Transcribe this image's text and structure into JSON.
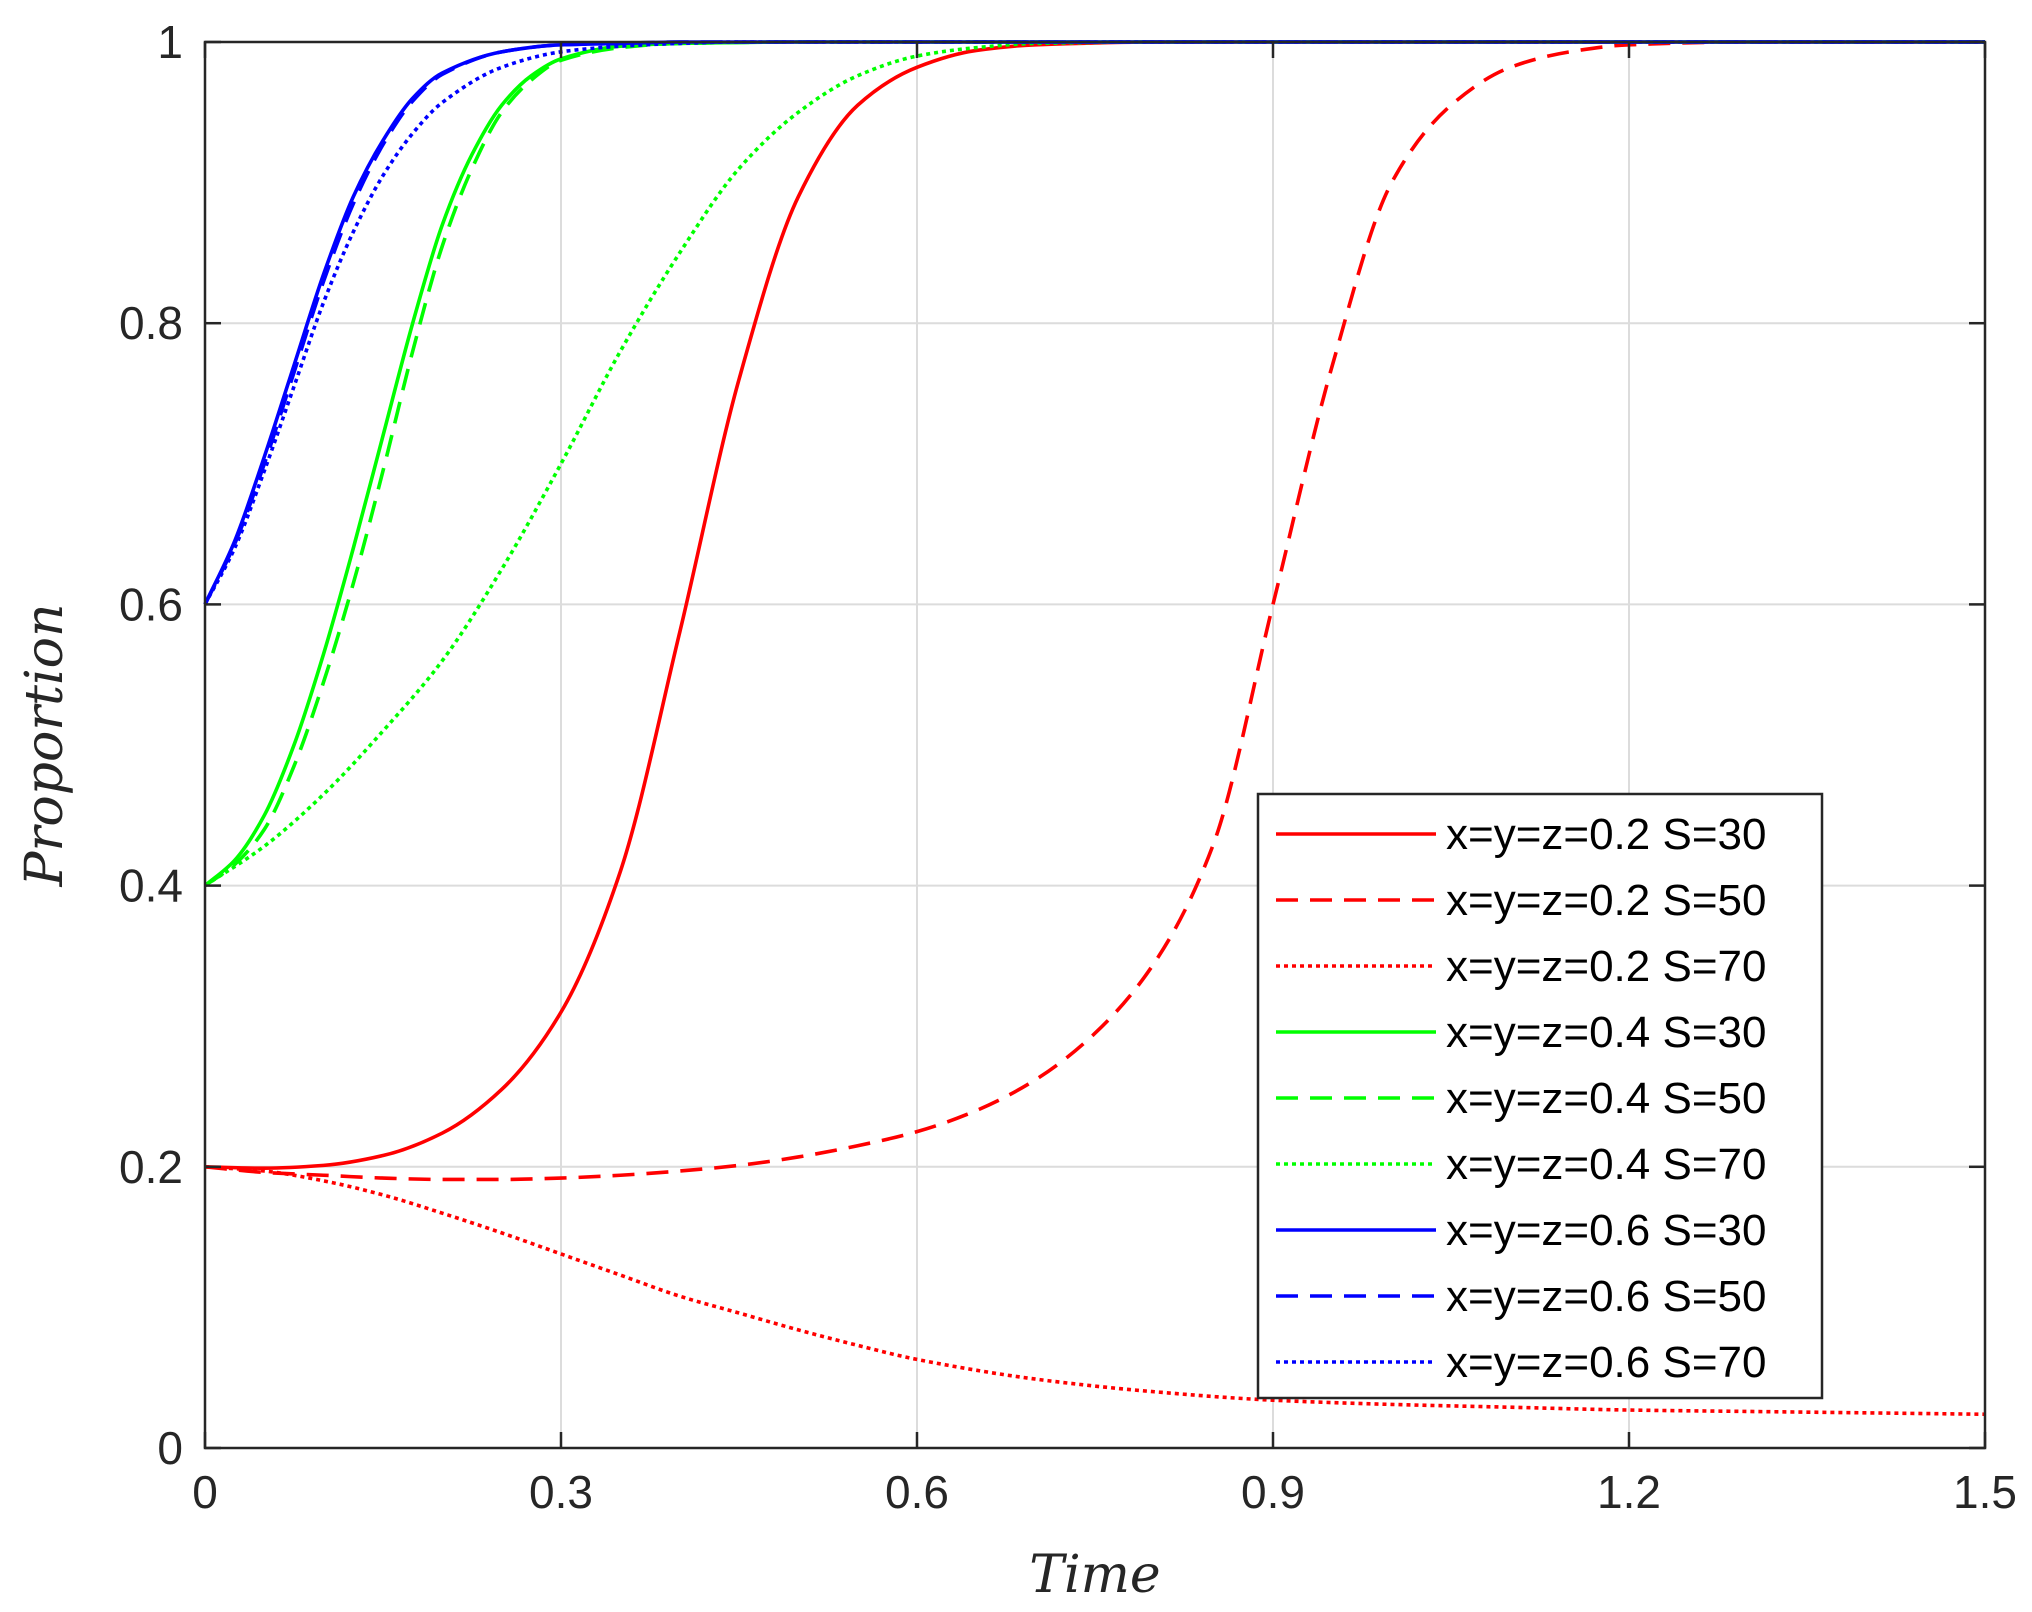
{
  "chart_data": {
    "type": "line",
    "title": "",
    "xlabel": "Time",
    "ylabel": "Proportion",
    "xlim": [
      0,
      1.5
    ],
    "ylim": [
      0,
      1
    ],
    "xticks": [
      0,
      0.3,
      0.6,
      0.9,
      1.2,
      1.5
    ],
    "xtick_labels": [
      "0",
      "0.3",
      "0.6",
      "0.9",
      "1.2",
      "1.5"
    ],
    "yticks": [
      0,
      0.2,
      0.4,
      0.6,
      0.8,
      1
    ],
    "ytick_labels": [
      "0",
      "0.2",
      "0.4",
      "0.6",
      "0.8",
      "1"
    ],
    "grid": true,
    "legend_position": "lower-right",
    "series": [
      {
        "name": "x=y=z=0.2 S=30",
        "color": "#ff0000",
        "dash": "solid",
        "x": [
          0,
          0.05,
          0.1,
          0.15,
          0.2,
          0.25,
          0.3,
          0.35,
          0.4,
          0.45,
          0.5,
          0.55,
          0.6,
          0.65,
          0.7,
          0.8,
          1.0,
          1.2,
          1.5
        ],
        "y": [
          0.2,
          0.199,
          0.201,
          0.208,
          0.224,
          0.255,
          0.31,
          0.41,
          0.58,
          0.76,
          0.89,
          0.955,
          0.982,
          0.994,
          0.998,
          1,
          1,
          1,
          1
        ]
      },
      {
        "name": "x=y=z=0.2 S=50",
        "color": "#ff0000",
        "dash": "dashed",
        "x": [
          0,
          0.05,
          0.1,
          0.15,
          0.2,
          0.25,
          0.3,
          0.35,
          0.4,
          0.45,
          0.5,
          0.55,
          0.6,
          0.65,
          0.7,
          0.75,
          0.8,
          0.85,
          0.9,
          0.95,
          1.0,
          1.05,
          1.1,
          1.15,
          1.2,
          1.3,
          1.5
        ],
        "y": [
          0.2,
          0.196,
          0.194,
          0.192,
          0.191,
          0.191,
          0.192,
          0.194,
          0.197,
          0.201,
          0.207,
          0.215,
          0.225,
          0.24,
          0.262,
          0.295,
          0.345,
          0.43,
          0.6,
          0.77,
          0.9,
          0.955,
          0.982,
          0.993,
          0.998,
          1,
          1
        ]
      },
      {
        "name": "x=y=z=0.2 S=70",
        "color": "#ff0000",
        "dash": "dotted",
        "x": [
          0,
          0.05,
          0.1,
          0.15,
          0.2,
          0.25,
          0.3,
          0.35,
          0.4,
          0.45,
          0.5,
          0.55,
          0.6,
          0.7,
          0.8,
          0.9,
          1.0,
          1.1,
          1.2,
          1.3,
          1.4,
          1.5
        ],
        "y": [
          0.2,
          0.197,
          0.19,
          0.18,
          0.167,
          0.153,
          0.138,
          0.123,
          0.108,
          0.096,
          0.084,
          0.073,
          0.063,
          0.049,
          0.04,
          0.034,
          0.031,
          0.029,
          0.027,
          0.026,
          0.025,
          0.024
        ]
      },
      {
        "name": "x=y=z=0.4 S=30",
        "color": "#00ff00",
        "dash": "solid",
        "x": [
          0,
          0.025,
          0.05,
          0.075,
          0.1,
          0.125,
          0.15,
          0.175,
          0.2,
          0.225,
          0.25,
          0.275,
          0.3,
          0.35,
          0.4,
          0.5,
          1.0,
          1.5
        ],
        "y": [
          0.4,
          0.418,
          0.45,
          0.5,
          0.565,
          0.64,
          0.72,
          0.8,
          0.87,
          0.92,
          0.955,
          0.976,
          0.988,
          0.997,
          0.999,
          1,
          1,
          1
        ]
      },
      {
        "name": "x=y=z=0.4 S=50",
        "color": "#00ff00",
        "dash": "dashed",
        "x": [
          0,
          0.025,
          0.05,
          0.075,
          0.1,
          0.125,
          0.15,
          0.175,
          0.2,
          0.225,
          0.25,
          0.275,
          0.3,
          0.35,
          0.4,
          0.5,
          1.0,
          1.5
        ],
        "y": [
          0.4,
          0.415,
          0.44,
          0.485,
          0.545,
          0.615,
          0.695,
          0.78,
          0.855,
          0.91,
          0.95,
          0.973,
          0.987,
          0.996,
          0.999,
          1,
          1,
          1
        ]
      },
      {
        "name": "x=y=z=0.4 S=70",
        "color": "#00ff00",
        "dash": "dotted",
        "x": [
          0,
          0.05,
          0.1,
          0.15,
          0.2,
          0.25,
          0.3,
          0.35,
          0.4,
          0.45,
          0.5,
          0.55,
          0.6,
          0.65,
          0.7,
          0.8,
          1.0,
          1.5
        ],
        "y": [
          0.4,
          0.428,
          0.465,
          0.51,
          0.56,
          0.625,
          0.7,
          0.78,
          0.85,
          0.91,
          0.95,
          0.976,
          0.99,
          0.996,
          0.999,
          1,
          1,
          1
        ]
      },
      {
        "name": "x=y=z=0.6 S=30",
        "color": "#0000ff",
        "dash": "solid",
        "x": [
          0,
          0.025,
          0.05,
          0.075,
          0.1,
          0.125,
          0.15,
          0.175,
          0.2,
          0.25,
          0.3,
          0.35,
          0.4,
          0.5,
          1.0,
          1.5
        ],
        "y": [
          0.6,
          0.645,
          0.705,
          0.77,
          0.835,
          0.89,
          0.93,
          0.96,
          0.978,
          0.993,
          0.998,
          0.999,
          1,
          1,
          1,
          1
        ]
      },
      {
        "name": "x=y=z=0.6 S=50",
        "color": "#0000ff",
        "dash": "dashed",
        "x": [
          0,
          0.025,
          0.05,
          0.075,
          0.1,
          0.125,
          0.15,
          0.175,
          0.2,
          0.25,
          0.3,
          0.35,
          0.4,
          0.5,
          1.0,
          1.5
        ],
        "y": [
          0.6,
          0.643,
          0.7,
          0.765,
          0.83,
          0.885,
          0.927,
          0.958,
          0.977,
          0.993,
          0.998,
          0.999,
          1,
          1,
          1,
          1
        ]
      },
      {
        "name": "x=y=z=0.6 S=70",
        "color": "#0000ff",
        "dash": "dotted",
        "x": [
          0,
          0.025,
          0.05,
          0.075,
          0.1,
          0.125,
          0.15,
          0.175,
          0.2,
          0.25,
          0.3,
          0.35,
          0.4,
          0.45,
          0.5,
          1.0,
          1.5
        ],
        "y": [
          0.6,
          0.64,
          0.695,
          0.755,
          0.815,
          0.865,
          0.905,
          0.935,
          0.957,
          0.982,
          0.993,
          0.997,
          0.999,
          1,
          1,
          1,
          1
        ]
      }
    ]
  }
}
